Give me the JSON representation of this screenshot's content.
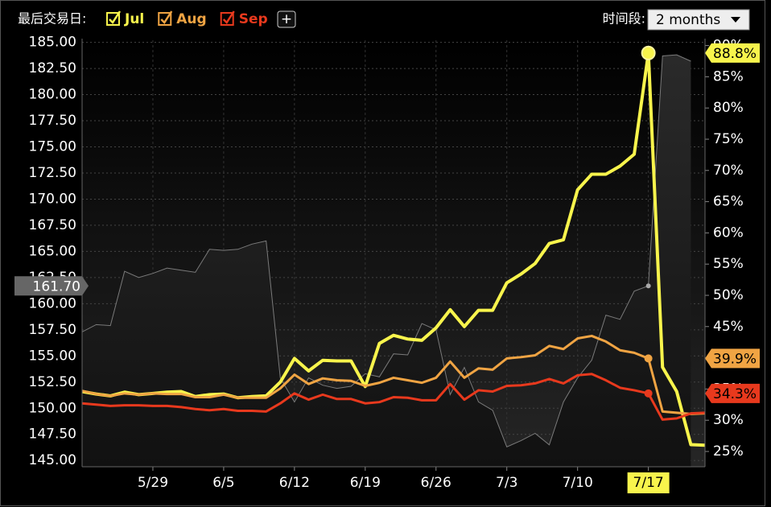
{
  "header": {
    "last_trade_label": "最后交易日:",
    "add_button": "+",
    "period_label": "时间段:",
    "period_value": "2 months"
  },
  "chart_data": {
    "type": "line",
    "categories": [
      null,
      null,
      null,
      null,
      null,
      "5/29",
      null,
      null,
      null,
      null,
      "6/5",
      null,
      null,
      null,
      null,
      "6/12",
      null,
      null,
      null,
      null,
      "6/19",
      null,
      null,
      null,
      null,
      "6/26",
      null,
      null,
      null,
      null,
      "7/3",
      null,
      null,
      null,
      null,
      "7/10",
      null,
      null,
      null,
      null,
      "7/17",
      null,
      null,
      null,
      null
    ],
    "series": [
      {
        "name": "Jul",
        "color": "#f8f44c",
        "axis": "y2",
        "values": [
          34.6,
          34.2,
          33.9,
          34.5,
          34.1,
          34.3,
          34.5,
          34.6,
          33.8,
          34.1,
          34.2,
          33.6,
          33.8,
          33.9,
          36.1,
          39.9,
          37.9,
          39.6,
          39.5,
          39.5,
          35.4,
          42.3,
          43.6,
          43.0,
          42.8,
          44.8,
          47.7,
          45.0,
          47.6,
          47.6,
          52.0,
          53.4,
          55.1,
          58.3,
          58.9,
          66.9,
          69.4,
          69.4,
          70.7,
          72.6,
          88.8,
          38.5,
          34.6,
          26.1,
          26.0
        ],
        "value_labels": [
          null,
          null,
          null,
          null,
          null,
          null,
          null,
          null,
          null,
          null,
          null,
          null,
          null,
          null,
          null,
          null,
          null,
          null,
          null,
          null,
          null,
          null,
          null,
          null,
          null,
          null,
          null,
          null,
          null,
          null,
          null,
          null,
          null,
          null,
          null,
          null,
          null,
          null,
          null,
          null,
          "88.8%",
          null,
          null,
          null,
          null
        ]
      },
      {
        "name": "Aug",
        "color": "#f0a443",
        "axis": "y2",
        "values": [
          34.7,
          34.2,
          33.9,
          34.3,
          34.1,
          34.3,
          34.2,
          34.2,
          33.7,
          33.7,
          34.1,
          33.6,
          33.6,
          33.6,
          35.1,
          37.3,
          35.8,
          36.7,
          36.4,
          36.3,
          35.5,
          36.0,
          36.8,
          36.4,
          36.0,
          36.8,
          39.4,
          36.8,
          38.3,
          38.1,
          39.9,
          40.1,
          40.4,
          41.9,
          41.4,
          43.1,
          43.5,
          42.6,
          41.2,
          40.8,
          39.9,
          31.4,
          31.2,
          31.0,
          31.1
        ],
        "value_labels": [
          null,
          null,
          null,
          null,
          null,
          null,
          null,
          null,
          null,
          null,
          null,
          null,
          null,
          null,
          null,
          null,
          null,
          null,
          null,
          null,
          null,
          null,
          null,
          null,
          null,
          null,
          null,
          null,
          null,
          null,
          null,
          null,
          null,
          null,
          null,
          null,
          null,
          null,
          null,
          null,
          "39.9%",
          null,
          null,
          null,
          null
        ]
      },
      {
        "name": "Sep",
        "color": "#e8391d",
        "axis": "y2",
        "values": [
          32.7,
          32.5,
          32.3,
          32.4,
          32.4,
          32.3,
          32.3,
          32.1,
          31.8,
          31.6,
          31.8,
          31.5,
          31.5,
          31.4,
          32.7,
          34.3,
          33.3,
          34.1,
          33.4,
          33.4,
          32.7,
          32.9,
          33.7,
          33.6,
          33.2,
          33.2,
          35.8,
          33.3,
          34.8,
          34.6,
          35.5,
          35.6,
          35.9,
          36.6,
          35.9,
          37.2,
          37.4,
          36.4,
          35.2,
          34.8,
          34.3,
          30.1,
          30.3,
          31.1,
          31.2
        ],
        "value_labels": [
          null,
          null,
          null,
          null,
          null,
          null,
          null,
          null,
          null,
          null,
          null,
          null,
          null,
          null,
          null,
          null,
          null,
          null,
          null,
          null,
          null,
          null,
          null,
          null,
          null,
          null,
          null,
          null,
          null,
          null,
          null,
          null,
          null,
          null,
          null,
          null,
          null,
          null,
          null,
          null,
          "34.3%",
          null,
          null,
          null,
          null
        ]
      }
    ],
    "area": {
      "color": "#7a7a7a",
      "axis": "y",
      "values": [
        157.3,
        158.0,
        157.9,
        163.1,
        162.5,
        162.9,
        163.4,
        163.2,
        163.0,
        165.2,
        165.1,
        165.2,
        165.7,
        166.0,
        152.9,
        150.6,
        152.9,
        152.2,
        151.9,
        152.1,
        153.3,
        153.0,
        155.2,
        155.1,
        158.1,
        157.5,
        151.3,
        153.9,
        150.6,
        149.8,
        146.3,
        146.9,
        147.6,
        146.5,
        150.6,
        152.9,
        154.6,
        158.9,
        158.5,
        161.2,
        161.7,
        183.7,
        183.8,
        183.2,
        null
      ],
      "value_labels": [
        null,
        null,
        null,
        null,
        null,
        null,
        null,
        null,
        null,
        null,
        null,
        null,
        null,
        null,
        null,
        null,
        null,
        null,
        null,
        null,
        null,
        null,
        null,
        null,
        null,
        null,
        null,
        null,
        null,
        null,
        null,
        null,
        null,
        null,
        null,
        null,
        null,
        null,
        null,
        null,
        "161.70",
        null,
        null,
        null,
        null
      ]
    },
    "ylim": [
      144.4,
      185.2
    ],
    "yticks": [
      {
        "value": 145,
        "label": "145.00"
      },
      {
        "value": 147.5,
        "label": "147.50"
      },
      {
        "value": 150,
        "label": "150.00"
      },
      {
        "value": 152.5,
        "label": "152.50"
      },
      {
        "value": 155,
        "label": "155.00"
      },
      {
        "value": 157.5,
        "label": "157.50"
      },
      {
        "value": 160,
        "label": "160.00"
      },
      {
        "value": 162.5,
        "label": "162.50"
      },
      {
        "value": 165,
        "label": "165.00"
      },
      {
        "value": 167.5,
        "label": "167.50"
      },
      {
        "value": 170,
        "label": "170.00"
      },
      {
        "value": 172.5,
        "label": "172.50"
      },
      {
        "value": 175,
        "label": "175.00"
      },
      {
        "value": 177.5,
        "label": "177.50"
      },
      {
        "value": 180,
        "label": "180.00"
      },
      {
        "value": 182.5,
        "label": "182.50"
      },
      {
        "value": 185,
        "label": "185.00"
      }
    ],
    "y2lim": [
      22.55,
      90.85
    ],
    "y2ticks": [
      {
        "value": 25,
        "label": "25%"
      },
      {
        "value": 30,
        "label": "30%"
      },
      {
        "value": 35,
        "label": "35%"
      },
      {
        "value": 40,
        "label": "40%"
      },
      {
        "value": 45,
        "label": "45%"
      },
      {
        "value": 50,
        "label": "50%"
      },
      {
        "value": 55,
        "label": "55%"
      },
      {
        "value": 60,
        "label": "60%"
      },
      {
        "value": 65,
        "label": "65%"
      },
      {
        "value": 70,
        "label": "70%"
      },
      {
        "value": 75,
        "label": "75%"
      },
      {
        "value": 80,
        "label": "80%"
      },
      {
        "value": 85,
        "label": "85%"
      },
      {
        "value": 90,
        "label": "90%"
      }
    ],
    "grid": true
  }
}
